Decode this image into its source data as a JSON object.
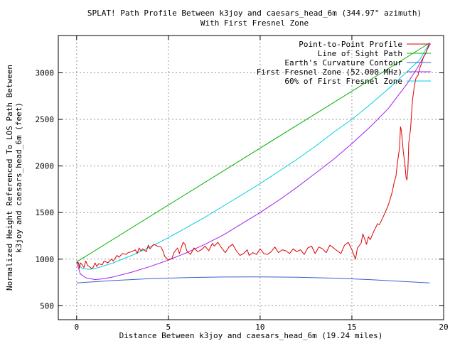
{
  "chart_data": {
    "type": "line",
    "title": "SPLAT! Path Profile Between k3joy and caesars_head_6m (344.97° azimuth)",
    "subtitle": "With First Fresnel Zone",
    "xlabel": "Distance Between k3joy and caesars_head_6m (19.24 miles)",
    "ylabel_line1": "Normalized Height Referenced To LOS Path Between",
    "ylabel_line2": "k3joy and caesars_head_6m (feet)",
    "xlim": [
      -1,
      20
    ],
    "ylim": [
      350,
      3400
    ],
    "xticks": [
      0,
      5,
      10,
      15,
      20
    ],
    "yticks": [
      500,
      1000,
      1500,
      2000,
      2500,
      3000
    ],
    "grid": true,
    "legend_position": "top-right",
    "series": [
      {
        "name": "Point-to-Point Profile",
        "color": "#dd0000",
        "points": [
          [
            0,
            970
          ],
          [
            0.1,
            960
          ],
          [
            0.15,
            900
          ],
          [
            0.2,
            960
          ],
          [
            0.3,
            940
          ],
          [
            0.4,
            910
          ],
          [
            0.5,
            980
          ],
          [
            0.6,
            930
          ],
          [
            0.7,
            920
          ],
          [
            0.8,
            900
          ],
          [
            0.9,
            910
          ],
          [
            1.0,
            960
          ],
          [
            1.1,
            920
          ],
          [
            1.2,
            950
          ],
          [
            1.4,
            940
          ],
          [
            1.5,
            980
          ],
          [
            1.7,
            960
          ],
          [
            1.9,
            1000
          ],
          [
            2.0,
            980
          ],
          [
            2.2,
            1040
          ],
          [
            2.3,
            1020
          ],
          [
            2.5,
            1060
          ],
          [
            2.7,
            1050
          ],
          [
            2.8,
            1070
          ],
          [
            3.0,
            1080
          ],
          [
            3.2,
            1100
          ],
          [
            3.3,
            1060
          ],
          [
            3.4,
            1120
          ],
          [
            3.5,
            1090
          ],
          [
            3.6,
            1110
          ],
          [
            3.8,
            1080
          ],
          [
            3.9,
            1150
          ],
          [
            4.0,
            1110
          ],
          [
            4.2,
            1160
          ],
          [
            4.4,
            1140
          ],
          [
            4.6,
            1130
          ],
          [
            4.7,
            1090
          ],
          [
            4.8,
            1030
          ],
          [
            5.0,
            990
          ],
          [
            5.2,
            1010
          ],
          [
            5.3,
            1070
          ],
          [
            5.5,
            1120
          ],
          [
            5.6,
            1060
          ],
          [
            5.8,
            1180
          ],
          [
            5.9,
            1160
          ],
          [
            6.0,
            1090
          ],
          [
            6.2,
            1050
          ],
          [
            6.4,
            1120
          ],
          [
            6.6,
            1080
          ],
          [
            6.8,
            1100
          ],
          [
            7.0,
            1140
          ],
          [
            7.2,
            1090
          ],
          [
            7.4,
            1170
          ],
          [
            7.5,
            1140
          ],
          [
            7.7,
            1180
          ],
          [
            7.9,
            1120
          ],
          [
            8.1,
            1070
          ],
          [
            8.3,
            1130
          ],
          [
            8.5,
            1160
          ],
          [
            8.7,
            1090
          ],
          [
            8.9,
            1040
          ],
          [
            9.1,
            1060
          ],
          [
            9.3,
            1100
          ],
          [
            9.4,
            1040
          ],
          [
            9.6,
            1070
          ],
          [
            9.8,
            1050
          ],
          [
            10.0,
            1110
          ],
          [
            10.2,
            1060
          ],
          [
            10.4,
            1050
          ],
          [
            10.6,
            1080
          ],
          [
            10.8,
            1130
          ],
          [
            11.0,
            1070
          ],
          [
            11.2,
            1100
          ],
          [
            11.4,
            1090
          ],
          [
            11.6,
            1060
          ],
          [
            11.8,
            1110
          ],
          [
            12.0,
            1080
          ],
          [
            12.2,
            1100
          ],
          [
            12.4,
            1050
          ],
          [
            12.6,
            1120
          ],
          [
            12.8,
            1140
          ],
          [
            13.0,
            1060
          ],
          [
            13.2,
            1130
          ],
          [
            13.4,
            1110
          ],
          [
            13.6,
            1070
          ],
          [
            13.8,
            1150
          ],
          [
            14.0,
            1120
          ],
          [
            14.2,
            1090
          ],
          [
            14.4,
            1060
          ],
          [
            14.6,
            1150
          ],
          [
            14.8,
            1180
          ],
          [
            15.0,
            1100
          ],
          [
            15.1,
            1050
          ],
          [
            15.2,
            1000
          ],
          [
            15.3,
            1120
          ],
          [
            15.5,
            1170
          ],
          [
            15.6,
            1270
          ],
          [
            15.8,
            1160
          ],
          [
            15.9,
            1240
          ],
          [
            16.0,
            1210
          ],
          [
            16.2,
            1300
          ],
          [
            16.4,
            1380
          ],
          [
            16.5,
            1370
          ],
          [
            16.7,
            1450
          ],
          [
            16.9,
            1540
          ],
          [
            17.0,
            1590
          ],
          [
            17.2,
            1720
          ],
          [
            17.3,
            1820
          ],
          [
            17.4,
            1890
          ],
          [
            17.5,
            2060
          ],
          [
            17.6,
            2200
          ],
          [
            17.65,
            2420
          ],
          [
            17.7,
            2380
          ],
          [
            17.8,
            2160
          ],
          [
            17.9,
            2000
          ],
          [
            17.95,
            1880
          ],
          [
            18.0,
            1850
          ],
          [
            18.05,
            1950
          ],
          [
            18.1,
            2250
          ],
          [
            18.2,
            2400
          ],
          [
            18.3,
            2700
          ],
          [
            18.4,
            2850
          ],
          [
            18.5,
            2950
          ],
          [
            18.6,
            2970
          ],
          [
            18.7,
            3050
          ],
          [
            18.8,
            3100
          ],
          [
            18.9,
            3170
          ],
          [
            19.0,
            3200
          ],
          [
            19.1,
            3250
          ],
          [
            19.24,
            3300
          ]
        ]
      },
      {
        "name": "Line of Sight Path",
        "color": "#00b000",
        "points": [
          [
            0,
            970
          ],
          [
            19.24,
            3320
          ]
        ]
      },
      {
        "name": "Earth's Curvature Contour",
        "color": "#3a5fcd",
        "points": [
          [
            0,
            745
          ],
          [
            2,
            770
          ],
          [
            4,
            790
          ],
          [
            6,
            802
          ],
          [
            8,
            808
          ],
          [
            10,
            810
          ],
          [
            12,
            806
          ],
          [
            14,
            796
          ],
          [
            16,
            780
          ],
          [
            18,
            758
          ],
          [
            19.24,
            745
          ]
        ]
      },
      {
        "name": "First Fresnel Zone (52.000 MHz)",
        "color": "#a020f0",
        "points": [
          [
            0,
            970
          ],
          [
            0.2,
            840
          ],
          [
            0.5,
            800
          ],
          [
            1.0,
            780
          ],
          [
            1.5,
            790
          ],
          [
            2,
            810
          ],
          [
            3,
            860
          ],
          [
            4,
            920
          ],
          [
            5,
            990
          ],
          [
            6,
            1070
          ],
          [
            7,
            1160
          ],
          [
            8,
            1260
          ],
          [
            9,
            1380
          ],
          [
            10,
            1500
          ],
          [
            11,
            1630
          ],
          [
            12,
            1770
          ],
          [
            13,
            1920
          ],
          [
            14,
            2070
          ],
          [
            15,
            2240
          ],
          [
            16,
            2420
          ],
          [
            17,
            2620
          ],
          [
            18,
            2880
          ],
          [
            18.5,
            3030
          ],
          [
            19.0,
            3200
          ],
          [
            19.24,
            3320
          ]
        ]
      },
      {
        "name": "60% of First Fresnel Zone",
        "color": "#00d0e0",
        "points": [
          [
            0,
            970
          ],
          [
            0.3,
            900
          ],
          [
            0.7,
            890
          ],
          [
            1.2,
            910
          ],
          [
            2,
            960
          ],
          [
            3,
            1040
          ],
          [
            4,
            1130
          ],
          [
            5,
            1230
          ],
          [
            6,
            1340
          ],
          [
            7,
            1450
          ],
          [
            8,
            1570
          ],
          [
            9,
            1690
          ],
          [
            10,
            1810
          ],
          [
            11,
            1940
          ],
          [
            12,
            2070
          ],
          [
            13,
            2210
          ],
          [
            14,
            2360
          ],
          [
            15,
            2500
          ],
          [
            16,
            2660
          ],
          [
            17,
            2830
          ],
          [
            18,
            3010
          ],
          [
            18.7,
            3140
          ],
          [
            19.24,
            3320
          ]
        ]
      }
    ]
  }
}
